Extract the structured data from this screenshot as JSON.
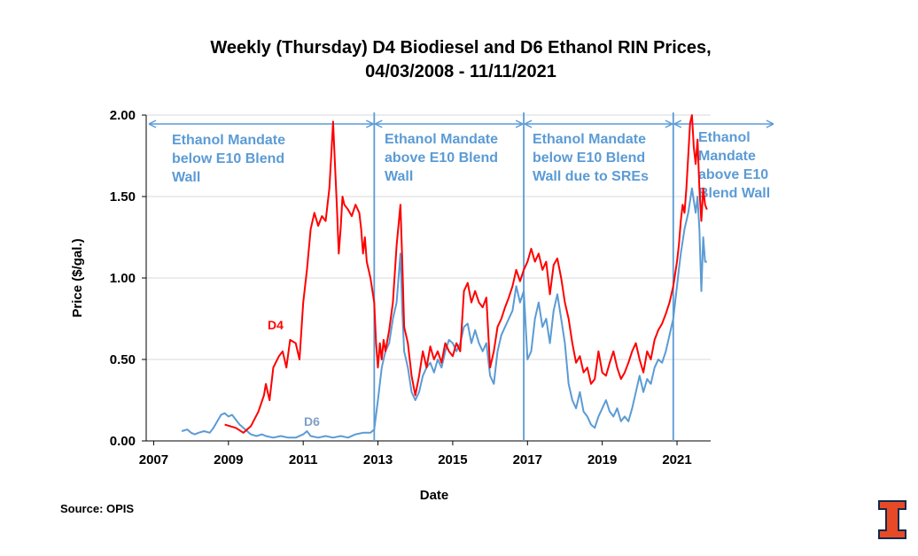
{
  "chart_data": {
    "type": "line",
    "title_line1": "Weekly (Thursday) D4 Biodiesel and D6 Ethanol RIN Prices,",
    "title_line2": "04/03/2008 - 11/11/2021",
    "xlabel": "Date",
    "ylabel": "Price ($/gal.)",
    "ylim": [
      0,
      2
    ],
    "xlim": [
      2006.8,
      2021.9
    ],
    "yticks": [
      "0.00",
      "0.50",
      "1.00",
      "1.50",
      "2.00"
    ],
    "xticks": [
      "2007",
      "2009",
      "2011",
      "2013",
      "2015",
      "2017",
      "2019",
      "2021"
    ],
    "grid": "horizontal",
    "source": "Source: OPIS",
    "dividers": [
      2012.9,
      2016.9,
      2020.9
    ],
    "regimes": [
      {
        "lines": [
          "Ethanol Mandate",
          "below E10 Blend",
          "Wall"
        ]
      },
      {
        "lines": [
          "Ethanol Mandate",
          "above E10 Blend",
          "Wall"
        ]
      },
      {
        "lines": [
          "Ethanol Mandate",
          "below E10 Blend",
          "Wall due to SREs"
        ]
      },
      {
        "lines": [
          "Ethanol",
          "Mandate",
          "above E10",
          "Blend Wall"
        ]
      }
    ],
    "series": [
      {
        "name": "D4",
        "color": "#ff0000",
        "points": [
          [
            2008.9,
            0.1
          ],
          [
            2009.2,
            0.08
          ],
          [
            2009.4,
            0.05
          ],
          [
            2009.6,
            0.09
          ],
          [
            2009.8,
            0.18
          ],
          [
            2009.95,
            0.28
          ],
          [
            2010.0,
            0.35
          ],
          [
            2010.1,
            0.25
          ],
          [
            2010.2,
            0.45
          ],
          [
            2010.35,
            0.52
          ],
          [
            2010.45,
            0.55
          ],
          [
            2010.55,
            0.45
          ],
          [
            2010.65,
            0.62
          ],
          [
            2010.8,
            0.6
          ],
          [
            2010.9,
            0.5
          ],
          [
            2011.0,
            0.85
          ],
          [
            2011.1,
            1.05
          ],
          [
            2011.2,
            1.3
          ],
          [
            2011.3,
            1.4
          ],
          [
            2011.4,
            1.32
          ],
          [
            2011.5,
            1.38
          ],
          [
            2011.6,
            1.35
          ],
          [
            2011.7,
            1.55
          ],
          [
            2011.75,
            1.75
          ],
          [
            2011.8,
            1.96
          ],
          [
            2011.85,
            1.7
          ],
          [
            2011.9,
            1.45
          ],
          [
            2011.95,
            1.15
          ],
          [
            2012.0,
            1.3
          ],
          [
            2012.05,
            1.5
          ],
          [
            2012.1,
            1.45
          ],
          [
            2012.2,
            1.42
          ],
          [
            2012.3,
            1.38
          ],
          [
            2012.4,
            1.45
          ],
          [
            2012.5,
            1.4
          ],
          [
            2012.55,
            1.3
          ],
          [
            2012.6,
            1.15
          ],
          [
            2012.65,
            1.25
          ],
          [
            2012.7,
            1.1
          ],
          [
            2012.8,
            1.0
          ],
          [
            2012.9,
            0.85
          ],
          [
            2012.95,
            0.6
          ],
          [
            2013.0,
            0.45
          ],
          [
            2013.05,
            0.6
          ],
          [
            2013.1,
            0.5
          ],
          [
            2013.15,
            0.62
          ],
          [
            2013.2,
            0.55
          ],
          [
            2013.3,
            0.68
          ],
          [
            2013.4,
            0.85
          ],
          [
            2013.5,
            1.2
          ],
          [
            2013.6,
            1.45
          ],
          [
            2013.65,
            1.1
          ],
          [
            2013.7,
            0.7
          ],
          [
            2013.8,
            0.6
          ],
          [
            2013.9,
            0.4
          ],
          [
            2014.0,
            0.28
          ],
          [
            2014.1,
            0.4
          ],
          [
            2014.2,
            0.55
          ],
          [
            2014.3,
            0.45
          ],
          [
            2014.4,
            0.58
          ],
          [
            2014.5,
            0.5
          ],
          [
            2014.6,
            0.55
          ],
          [
            2014.7,
            0.48
          ],
          [
            2014.8,
            0.6
          ],
          [
            2014.9,
            0.55
          ],
          [
            2015.0,
            0.52
          ],
          [
            2015.1,
            0.6
          ],
          [
            2015.2,
            0.55
          ],
          [
            2015.3,
            0.92
          ],
          [
            2015.4,
            0.97
          ],
          [
            2015.5,
            0.85
          ],
          [
            2015.6,
            0.92
          ],
          [
            2015.7,
            0.85
          ],
          [
            2015.8,
            0.82
          ],
          [
            2015.9,
            0.88
          ],
          [
            2016.0,
            0.45
          ],
          [
            2016.1,
            0.55
          ],
          [
            2016.2,
            0.7
          ],
          [
            2016.3,
            0.75
          ],
          [
            2016.4,
            0.82
          ],
          [
            2016.5,
            0.88
          ],
          [
            2016.6,
            0.95
          ],
          [
            2016.7,
            1.05
          ],
          [
            2016.8,
            0.98
          ],
          [
            2016.9,
            1.05
          ],
          [
            2017.0,
            1.1
          ],
          [
            2017.1,
            1.18
          ],
          [
            2017.2,
            1.1
          ],
          [
            2017.3,
            1.15
          ],
          [
            2017.4,
            1.05
          ],
          [
            2017.5,
            1.1
          ],
          [
            2017.6,
            0.9
          ],
          [
            2017.7,
            1.08
          ],
          [
            2017.8,
            1.12
          ],
          [
            2017.9,
            1.0
          ],
          [
            2018.0,
            0.85
          ],
          [
            2018.1,
            0.75
          ],
          [
            2018.2,
            0.6
          ],
          [
            2018.3,
            0.48
          ],
          [
            2018.4,
            0.52
          ],
          [
            2018.5,
            0.42
          ],
          [
            2018.6,
            0.45
          ],
          [
            2018.7,
            0.35
          ],
          [
            2018.8,
            0.38
          ],
          [
            2018.9,
            0.55
          ],
          [
            2019.0,
            0.42
          ],
          [
            2019.1,
            0.4
          ],
          [
            2019.2,
            0.48
          ],
          [
            2019.3,
            0.55
          ],
          [
            2019.4,
            0.45
          ],
          [
            2019.5,
            0.38
          ],
          [
            2019.6,
            0.42
          ],
          [
            2019.7,
            0.48
          ],
          [
            2019.8,
            0.55
          ],
          [
            2019.9,
            0.6
          ],
          [
            2020.0,
            0.5
          ],
          [
            2020.1,
            0.42
          ],
          [
            2020.2,
            0.55
          ],
          [
            2020.3,
            0.5
          ],
          [
            2020.4,
            0.62
          ],
          [
            2020.5,
            0.68
          ],
          [
            2020.6,
            0.72
          ],
          [
            2020.7,
            0.78
          ],
          [
            2020.8,
            0.85
          ],
          [
            2020.9,
            0.95
          ],
          [
            2021.0,
            1.1
          ],
          [
            2021.05,
            1.2
          ],
          [
            2021.1,
            1.35
          ],
          [
            2021.15,
            1.45
          ],
          [
            2021.2,
            1.4
          ],
          [
            2021.25,
            1.55
          ],
          [
            2021.3,
            1.75
          ],
          [
            2021.35,
            1.95
          ],
          [
            2021.4,
            2.0
          ],
          [
            2021.45,
            1.8
          ],
          [
            2021.5,
            1.7
          ],
          [
            2021.55,
            1.85
          ],
          [
            2021.6,
            1.55
          ],
          [
            2021.65,
            1.35
          ],
          [
            2021.7,
            1.55
          ],
          [
            2021.75,
            1.45
          ],
          [
            2021.8,
            1.42
          ]
        ]
      },
      {
        "name": "D6",
        "color": "#5b9bd5",
        "points": [
          [
            2007.75,
            0.06
          ],
          [
            2007.9,
            0.07
          ],
          [
            2008.0,
            0.05
          ],
          [
            2008.1,
            0.04
          ],
          [
            2008.2,
            0.05
          ],
          [
            2008.35,
            0.06
          ],
          [
            2008.5,
            0.05
          ],
          [
            2008.6,
            0.08
          ],
          [
            2008.7,
            0.12
          ],
          [
            2008.8,
            0.16
          ],
          [
            2008.9,
            0.17
          ],
          [
            2009.0,
            0.15
          ],
          [
            2009.1,
            0.16
          ],
          [
            2009.2,
            0.13
          ],
          [
            2009.3,
            0.1
          ],
          [
            2009.4,
            0.08
          ],
          [
            2009.5,
            0.06
          ],
          [
            2009.6,
            0.04
          ],
          [
            2009.75,
            0.03
          ],
          [
            2009.9,
            0.04
          ],
          [
            2010.0,
            0.03
          ],
          [
            2010.2,
            0.02
          ],
          [
            2010.4,
            0.03
          ],
          [
            2010.6,
            0.02
          ],
          [
            2010.8,
            0.02
          ],
          [
            2011.0,
            0.04
          ],
          [
            2011.1,
            0.06
          ],
          [
            2011.2,
            0.03
          ],
          [
            2011.4,
            0.02
          ],
          [
            2011.6,
            0.03
          ],
          [
            2011.8,
            0.02
          ],
          [
            2012.0,
            0.03
          ],
          [
            2012.2,
            0.02
          ],
          [
            2012.4,
            0.04
          ],
          [
            2012.6,
            0.05
          ],
          [
            2012.8,
            0.05
          ],
          [
            2012.9,
            0.07
          ],
          [
            2013.0,
            0.25
          ],
          [
            2013.1,
            0.45
          ],
          [
            2013.2,
            0.55
          ],
          [
            2013.3,
            0.6
          ],
          [
            2013.4,
            0.75
          ],
          [
            2013.5,
            0.85
          ],
          [
            2013.6,
            1.15
          ],
          [
            2013.65,
            0.8
          ],
          [
            2013.7,
            0.55
          ],
          [
            2013.8,
            0.45
          ],
          [
            2013.9,
            0.3
          ],
          [
            2014.0,
            0.25
          ],
          [
            2014.1,
            0.3
          ],
          [
            2014.2,
            0.4
          ],
          [
            2014.3,
            0.45
          ],
          [
            2014.4,
            0.48
          ],
          [
            2014.5,
            0.42
          ],
          [
            2014.6,
            0.5
          ],
          [
            2014.7,
            0.45
          ],
          [
            2014.8,
            0.55
          ],
          [
            2014.9,
            0.62
          ],
          [
            2015.0,
            0.6
          ],
          [
            2015.1,
            0.55
          ],
          [
            2015.2,
            0.6
          ],
          [
            2015.3,
            0.7
          ],
          [
            2015.4,
            0.72
          ],
          [
            2015.5,
            0.6
          ],
          [
            2015.6,
            0.68
          ],
          [
            2015.7,
            0.6
          ],
          [
            2015.8,
            0.55
          ],
          [
            2015.9,
            0.6
          ],
          [
            2016.0,
            0.4
          ],
          [
            2016.1,
            0.35
          ],
          [
            2016.2,
            0.55
          ],
          [
            2016.3,
            0.65
          ],
          [
            2016.4,
            0.7
          ],
          [
            2016.5,
            0.75
          ],
          [
            2016.6,
            0.8
          ],
          [
            2016.7,
            0.95
          ],
          [
            2016.8,
            0.85
          ],
          [
            2016.9,
            0.92
          ],
          [
            2017.0,
            0.5
          ],
          [
            2017.1,
            0.55
          ],
          [
            2017.2,
            0.75
          ],
          [
            2017.3,
            0.85
          ],
          [
            2017.4,
            0.7
          ],
          [
            2017.5,
            0.75
          ],
          [
            2017.6,
            0.6
          ],
          [
            2017.7,
            0.8
          ],
          [
            2017.8,
            0.9
          ],
          [
            2017.9,
            0.75
          ],
          [
            2018.0,
            0.6
          ],
          [
            2018.1,
            0.35
          ],
          [
            2018.2,
            0.25
          ],
          [
            2018.3,
            0.2
          ],
          [
            2018.4,
            0.3
          ],
          [
            2018.5,
            0.18
          ],
          [
            2018.6,
            0.15
          ],
          [
            2018.7,
            0.1
          ],
          [
            2018.8,
            0.08
          ],
          [
            2018.9,
            0.15
          ],
          [
            2019.0,
            0.2
          ],
          [
            2019.1,
            0.25
          ],
          [
            2019.2,
            0.18
          ],
          [
            2019.3,
            0.15
          ],
          [
            2019.4,
            0.2
          ],
          [
            2019.5,
            0.12
          ],
          [
            2019.6,
            0.15
          ],
          [
            2019.7,
            0.12
          ],
          [
            2019.8,
            0.2
          ],
          [
            2019.9,
            0.3
          ],
          [
            2020.0,
            0.4
          ],
          [
            2020.1,
            0.3
          ],
          [
            2020.2,
            0.38
          ],
          [
            2020.3,
            0.35
          ],
          [
            2020.4,
            0.45
          ],
          [
            2020.5,
            0.5
          ],
          [
            2020.6,
            0.48
          ],
          [
            2020.7,
            0.55
          ],
          [
            2020.8,
            0.65
          ],
          [
            2020.9,
            0.75
          ],
          [
            2021.0,
            0.95
          ],
          [
            2021.05,
            1.05
          ],
          [
            2021.1,
            1.15
          ],
          [
            2021.2,
            1.3
          ],
          [
            2021.3,
            1.4
          ],
          [
            2021.4,
            1.55
          ],
          [
            2021.5,
            1.4
          ],
          [
            2021.55,
            1.5
          ],
          [
            2021.6,
            1.3
          ],
          [
            2021.65,
            0.92
          ],
          [
            2021.7,
            1.25
          ],
          [
            2021.75,
            1.1
          ],
          [
            2021.8,
            1.1
          ]
        ]
      }
    ]
  },
  "icons": {
    "logo": "block-i-logo",
    "logo_color": "#e84a27",
    "logo_border": "#13294b"
  }
}
